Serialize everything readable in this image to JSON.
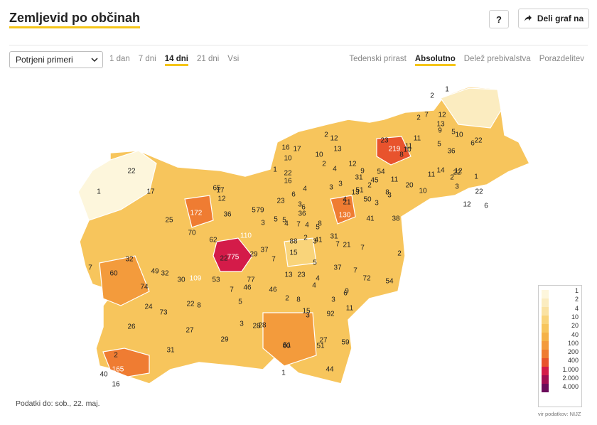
{
  "header": {
    "title": "Zemljevid po občinah",
    "help_label": "?",
    "share_label": "Deli graf na"
  },
  "controls": {
    "metric_select": "Potrjeni primeri",
    "periods": [
      "1 dan",
      "7 dni",
      "14 dni",
      "21 dni",
      "Vsi"
    ],
    "active_period": "14 dni",
    "modes": [
      "Tedenski prirast",
      "Absolutno",
      "Delež prebivalstva",
      "Porazdelitev"
    ],
    "active_mode": "Absolutno"
  },
  "legend": {
    "labels": [
      "1",
      "2",
      "4",
      "10",
      "20",
      "40",
      "100",
      "200",
      "400",
      "1.000",
      "2.000",
      "4.000"
    ],
    "colors": [
      "#fdf6dc",
      "#fbecc0",
      "#fae2a2",
      "#f9d47a",
      "#f7c55c",
      "#f5b247",
      "#f39b3c",
      "#ef7c32",
      "#e8532d",
      "#d41b49",
      "#a20c52",
      "#6b0a5a"
    ]
  },
  "map_values": [
    "775",
    "219",
    "172",
    "165",
    "130",
    "110",
    "109",
    "92",
    "88",
    "79",
    "77",
    "74",
    "73",
    "72",
    "70",
    "65",
    "62",
    "60",
    "60",
    "59",
    "54",
    "54",
    "53",
    "51",
    "51",
    "51",
    "50",
    "49",
    "46",
    "46",
    "45",
    "44",
    "41",
    "41",
    "40",
    "38",
    "37",
    "37",
    "36",
    "36",
    "36",
    "32",
    "32",
    "31",
    "31",
    "31",
    "30",
    "29",
    "29",
    "28",
    "28",
    "27",
    "27",
    "26",
    "25",
    "24",
    "23",
    "23",
    "23",
    "22",
    "22",
    "22",
    "22",
    "22",
    "22",
    "22",
    "21",
    "21",
    "20",
    "17",
    "17",
    "17",
    "16",
    "16",
    "16",
    "15",
    "15",
    "14",
    "13",
    "13",
    "13",
    "13",
    "12",
    "12",
    "12",
    "12",
    "12",
    "12",
    "11",
    "11",
    "11",
    "11",
    "11",
    "10",
    "10",
    "10",
    "10",
    "10",
    "9",
    "9",
    "9",
    "8",
    "8",
    "8",
    "8",
    "8",
    "7",
    "7",
    "7",
    "7",
    "7",
    "7",
    "7",
    "7",
    "6",
    "6",
    "6",
    "6",
    "6",
    "5",
    "5",
    "5",
    "5",
    "5",
    "5",
    "5",
    "5",
    "4",
    "4",
    "4",
    "4",
    "4",
    "4",
    "4",
    "3",
    "3",
    "3",
    "3",
    "3",
    "3",
    "3",
    "3",
    "3",
    "3",
    "3",
    "2",
    "2",
    "2",
    "2",
    "2",
    "2",
    "2",
    "2",
    "2",
    "2",
    "1",
    "1",
    "1",
    "1",
    "1",
    "1",
    "1",
    "1"
  ],
  "footnote": "Podatki do: sob., 22. maj.",
  "source": "vir podatkov: NIJZ"
}
